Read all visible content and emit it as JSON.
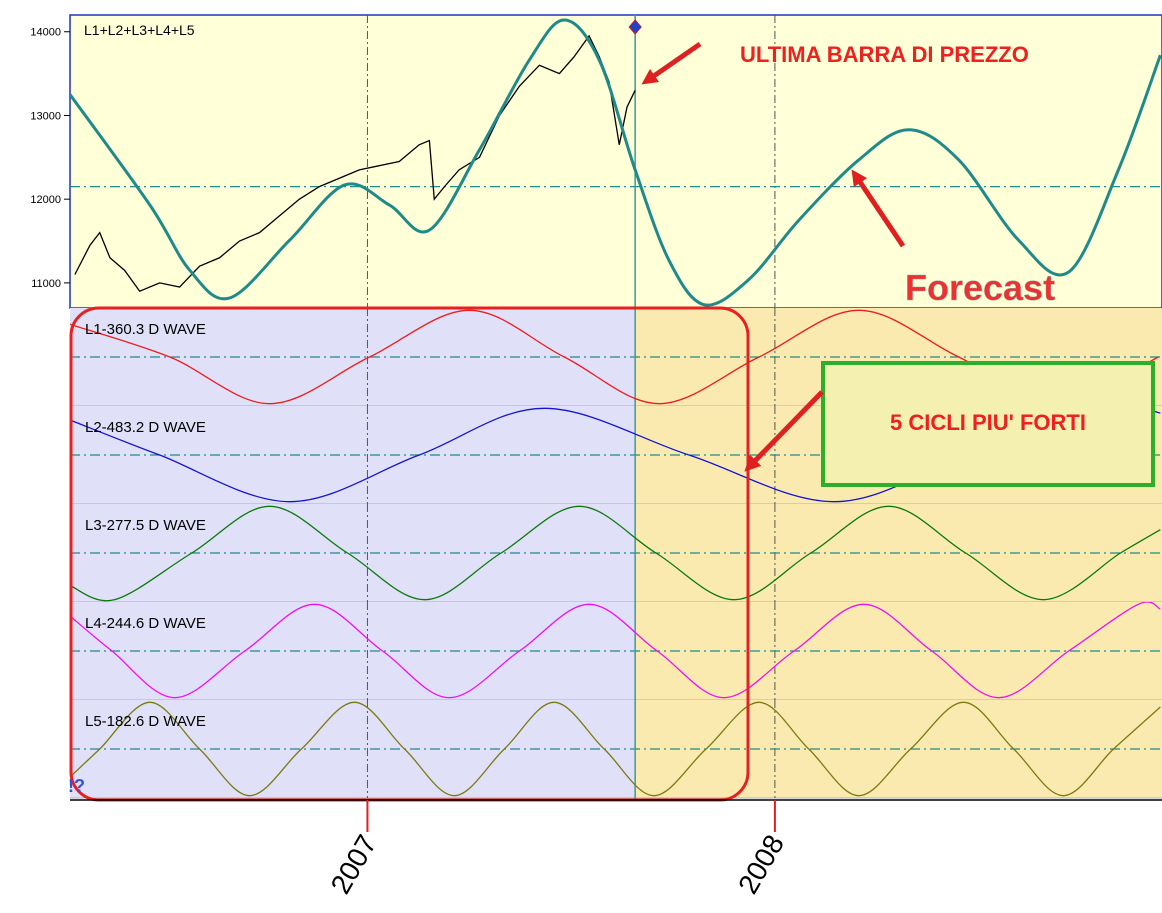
{
  "chart_data": [
    {
      "type": "line",
      "title": "L1+L2+L3+L4+L5",
      "xlim": [
        2006.27,
        2008.95
      ],
      "ylim": [
        10700,
        14200
      ],
      "yticks": [
        11000,
        12000,
        13000,
        14000
      ],
      "hline": 12150,
      "vline": 2007.657,
      "series": [
        {
          "color": "#000000",
          "x": [
            2006.282,
            2006.319,
            2006.343,
            2006.368,
            2006.404,
            2006.441,
            2006.49,
            2006.539,
            2006.588,
            2006.637,
            2006.686,
            2006.735,
            2006.784,
            2006.833,
            2006.882,
            2006.931,
            2006.98,
            2007.029,
            2007.078,
            2007.127,
            2007.152,
            2007.164,
            2007.189,
            2007.225,
            2007.275,
            2007.324,
            2007.373,
            2007.422,
            2007.471,
            2007.507,
            2007.544,
            2007.569,
            2007.593,
            2007.618,
            2007.637,
            2007.657
          ],
          "values": [
            11100,
            11450,
            11600,
            11300,
            11150,
            10900,
            11000,
            10950,
            11200,
            11300,
            11500,
            11600,
            11800,
            12000,
            12150,
            12250,
            12350,
            12400,
            12450,
            12650,
            12700,
            12000,
            12150,
            12350,
            12500,
            13000,
            13350,
            13600,
            13500,
            13700,
            13950,
            13700,
            13400,
            12650,
            13100,
            13300
          ]
        },
        {
          "color": "#1f8a8a",
          "x": [
            2006.27,
            2006.466,
            2006.564,
            2006.662,
            2006.809,
            2006.944,
            2007.054,
            2007.152,
            2007.275,
            2007.397,
            2007.483,
            2007.569,
            2007.657,
            2007.74,
            2007.826,
            2007.936,
            2008.059,
            2008.206,
            2008.328,
            2008.451,
            2008.598,
            2008.721,
            2008.843,
            2008.946
          ],
          "values": [
            13250,
            11930,
            11150,
            10820,
            11510,
            12170,
            11930,
            11630,
            12590,
            13660,
            14140,
            13660,
            12350,
            11270,
            10740,
            11040,
            11750,
            12470,
            12830,
            12470,
            11510,
            11130,
            12350,
            13720
          ]
        }
      ],
      "annotations": [
        "ULTIMA BARRA DI PREZZO",
        "Forecast"
      ]
    },
    {
      "type": "line",
      "title": "L1-360.3 D WAVE",
      "xlim": [
        2006.27,
        2008.95
      ],
      "ylim": [
        -1.05,
        1.05
      ],
      "hline": 0,
      "color": "#ee1c1c",
      "x": [
        2006.27,
        2006.515,
        2006.76,
        2007.005,
        2007.25,
        2007.483,
        2007.716,
        2007.961,
        2008.206,
        2008.451,
        2008.696,
        2008.941
      ],
      "values": [
        0.7,
        0,
        -1,
        0,
        1,
        0,
        -1,
        0,
        1,
        0,
        -1,
        0
      ]
    },
    {
      "type": "line",
      "title": "L2-483.2 D WAVE",
      "xlim": [
        2006.27,
        2008.95
      ],
      "ylim": [
        -1.05,
        1.05
      ],
      "hline": 0,
      "color": "#1414d2",
      "x": [
        2006.27,
        2006.49,
        2006.809,
        2007.127,
        2007.434,
        2007.789,
        2008.145,
        2008.475,
        2008.819,
        2008.946
      ],
      "values": [
        0.75,
        0,
        -1,
        0,
        1,
        0,
        -1,
        0,
        1,
        0.9
      ]
    },
    {
      "type": "line",
      "title": "L3-277.5 D WAVE",
      "xlim": [
        2006.27,
        2008.95
      ],
      "ylim": [
        -1.05,
        1.05
      ],
      "hline": 0,
      "color": "#0a7a0a",
      "x": [
        2006.27,
        2006.38,
        2006.569,
        2006.76,
        2006.951,
        2007.14,
        2007.328,
        2007.52,
        2007.708,
        2007.9,
        2008.088,
        2008.279,
        2008.468,
        2008.659,
        2008.848,
        2008.946
      ],
      "values": [
        -0.7,
        -1,
        0,
        1,
        0,
        -1,
        0,
        1,
        0,
        -1,
        0,
        1,
        0,
        -1,
        0,
        0.5
      ]
    },
    {
      "type": "line",
      "title": "L4-244.6 D WAVE",
      "xlim": [
        2006.27,
        2008.95
      ],
      "ylim": [
        -1.05,
        1.05
      ],
      "hline": 0,
      "color": "#f010f0",
      "x": [
        2006.27,
        2006.373,
        2006.527,
        2006.699,
        2006.87,
        2007.037,
        2007.201,
        2007.373,
        2007.544,
        2007.711,
        2007.875,
        2008.047,
        2008.218,
        2008.385,
        2008.549,
        2008.721,
        2008.892,
        2008.946
      ],
      "values": [
        0.75,
        0,
        -1,
        0,
        1,
        0,
        -1,
        0,
        1,
        0,
        -1,
        0,
        1,
        0,
        -1,
        0,
        1,
        0.9
      ]
    },
    {
      "type": "line",
      "title": "L5-182.6 D WAVE",
      "xlim": [
        2006.27,
        2008.95
      ],
      "ylim": [
        -1.05,
        1.05
      ],
      "hline": 0,
      "color": "#7a7a10",
      "x": [
        2006.27,
        2006.343,
        2006.466,
        2006.588,
        2006.711,
        2006.838,
        2006.968,
        2007.091,
        2007.213,
        2007.336,
        2007.458,
        2007.581,
        2007.703,
        2007.831,
        2007.961,
        2008.083,
        2008.206,
        2008.333,
        2008.463,
        2008.586,
        2008.708,
        2008.831,
        2008.946
      ],
      "values": [
        -0.6,
        0,
        1,
        0,
        -1,
        0,
        1,
        0,
        -1,
        0,
        1,
        0,
        -1,
        0,
        1,
        0,
        -1,
        0,
        1,
        0,
        -1,
        0,
        0.9
      ],
      "xticks": [
        2007,
        2008
      ],
      "annotations": [
        "5 CICLI PIU' FORTI",
        "!?"
      ]
    }
  ]
}
